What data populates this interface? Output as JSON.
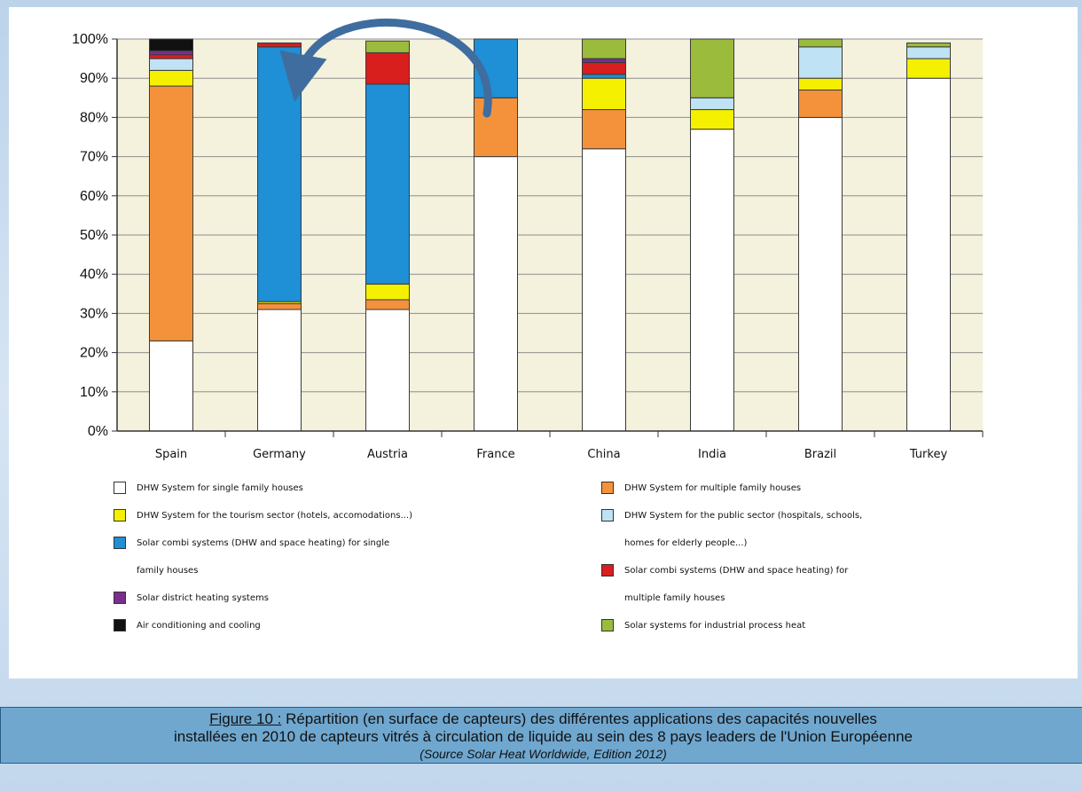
{
  "chart_data": {
    "type": "bar",
    "stacked": true,
    "title": "",
    "xlabel": "",
    "ylabel": "",
    "ylim": [
      0,
      100
    ],
    "y_ticks": [
      "0%",
      "10%",
      "20%",
      "30%",
      "40%",
      "50%",
      "60%",
      "70%",
      "80%",
      "90%",
      "100%"
    ],
    "grid": "horizontal",
    "legend_position": "bottom",
    "categories": [
      "Spain",
      "Germany",
      "Austria",
      "France",
      "China",
      "India",
      "Brazil",
      "Turkey"
    ],
    "series": [
      {
        "name": "DHW System for single family houses",
        "color": "#ffffff",
        "values": [
          23,
          31,
          31,
          70,
          72,
          77,
          80,
          90
        ]
      },
      {
        "name": "DHW System for multiple family houses",
        "color": "#f4923c",
        "values": [
          65,
          1.5,
          2.5,
          15,
          10,
          0,
          7,
          0
        ]
      },
      {
        "name": "DHW System for the tourism sector (hotels, accomodations...)",
        "color": "#f4f000",
        "values": [
          4,
          0.5,
          4,
          0,
          8,
          5,
          3,
          5
        ]
      },
      {
        "name": "DHW System for the public sector (hospitals, schools, homes for elderly people...)",
        "color": "#bfe2f4",
        "values": [
          3,
          0,
          0,
          0,
          0,
          3,
          8,
          3
        ]
      },
      {
        "name": "Solar combi systems (DHW and space heating) for single family houses",
        "color": "#1f8fd6",
        "values": [
          0,
          65,
          51,
          15,
          1,
          0,
          0,
          0
        ]
      },
      {
        "name": "Solar combi systems (DHW and space heating) for multiple family houses",
        "color": "#d91e1e",
        "values": [
          1,
          1,
          8,
          0,
          3,
          0,
          0,
          0
        ]
      },
      {
        "name": "Solar district heating systems",
        "color": "#7b2d8e",
        "values": [
          1,
          0,
          0,
          0,
          1,
          0,
          0,
          0
        ]
      },
      {
        "name": "Solar systems for industrial process heat",
        "color": "#9bbb3c",
        "values": [
          0,
          0,
          3,
          0,
          5,
          15,
          2,
          1
        ]
      },
      {
        "name": "Air conditioning and cooling",
        "color": "#111111",
        "values": [
          3,
          0,
          0,
          0,
          0,
          0,
          0,
          0
        ]
      }
    ],
    "legend": [
      {
        "text": "DHW System for single family houses",
        "color": "#ffffff",
        "column": 0,
        "row": 0
      },
      {
        "text": "DHW System for the tourism sector (hotels, accomodations...)",
        "color": "#f4f000",
        "column": 0,
        "row": 1
      },
      {
        "text": "Solar combi systems (DHW and space heating) for single",
        "text2": "family houses",
        "color": "#1f8fd6",
        "column": 0,
        "row": 2
      },
      {
        "text": "Solar district heating systems",
        "color": "#7b2d8e",
        "column": 0,
        "row": 4
      },
      {
        "text": "Air conditioning and cooling",
        "color": "#111111",
        "column": 0,
        "row": 5
      },
      {
        "text": "DHW System for multiple family houses",
        "color": "#f4923c",
        "column": 1,
        "row": 0
      },
      {
        "text": "DHW System for the public sector (hospitals, schools,",
        "text2": "homes for elderly people...)",
        "color": "#bfe2f4",
        "column": 1,
        "row": 1
      },
      {
        "text": "Solar combi systems (DHW and space heating) for",
        "text2": "multiple family houses",
        "color": "#d91e1e",
        "column": 1,
        "row": 3
      },
      {
        "text": "Solar systems for industrial process heat",
        "color": "#9bbb3c",
        "column": 1,
        "row": 5
      }
    ],
    "annotation": "curved arrow from France to Germany",
    "colors": {
      "plot_background": "#f4f1dc",
      "arrow": "#3f6d9f",
      "caption_background": "#6fa7cf"
    }
  },
  "caption": {
    "figure_ref": "Figure 10 :",
    "line1_rest": " Répartition (en surface de capteurs) des différentes applications des capacités nouvelles",
    "line2": "installées en 2010 de capteurs  vitrés à circulation de liquide au sein des 8 pays leaders de l'Union Européenne",
    "source": "(Source Solar Heat Worldwide, Edition 2012)"
  }
}
